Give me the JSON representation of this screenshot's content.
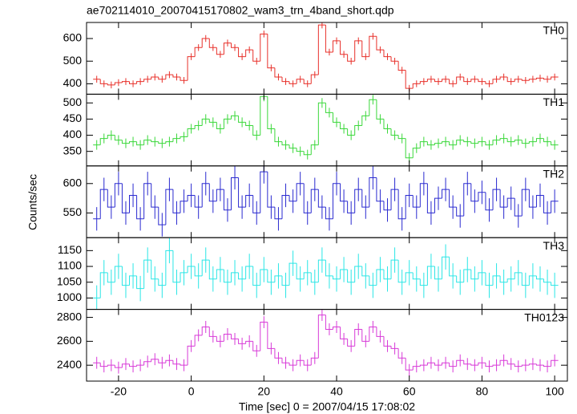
{
  "chart_data": {
    "type": "line",
    "title": "ae702114010_20070415170802_wam3_trn_4band_short.qdp",
    "xlabel": "Time [sec] 0 = 2007/04/15 17:08:02",
    "ylabel": "Counts/sec",
    "x": [
      -26,
      -24,
      -22,
      -20,
      -18,
      -16,
      -14,
      -12,
      -10,
      -8,
      -6,
      -4,
      -2,
      0,
      2,
      4,
      6,
      8,
      10,
      12,
      14,
      16,
      18,
      20,
      22,
      24,
      26,
      28,
      30,
      32,
      34,
      36,
      38,
      40,
      42,
      44,
      46,
      48,
      50,
      52,
      54,
      56,
      58,
      60,
      62,
      64,
      66,
      68,
      70,
      72,
      74,
      76,
      78,
      80,
      82,
      84,
      86,
      88,
      90,
      92,
      94,
      96,
      98,
      100
    ],
    "xlim": [
      -28.8,
      103.5
    ],
    "xticks": [
      -20,
      0,
      20,
      40,
      60,
      80,
      100
    ],
    "series": [
      {
        "name": "TH0",
        "color": "#e8302a",
        "error": 15,
        "ylim": [
          354,
          671
        ],
        "yticks": [
          400,
          500,
          600
        ],
        "values": [
          420,
          400,
          395,
          405,
          410,
          400,
          410,
          420,
          430,
          420,
          440,
          430,
          415,
          520,
          560,
          600,
          560,
          530,
          580,
          560,
          520,
          550,
          500,
          620,
          470,
          430,
          410,
          400,
          420,
          400,
          440,
          660,
          540,
          590,
          530,
          500,
          590,
          520,
          610,
          550,
          520,
          500,
          460,
          380,
          400,
          410,
          420,
          410,
          420,
          400,
          430,
          410,
          420,
          410,
          400,
          420,
          430,
          410,
          420,
          415,
          420,
          425,
          420,
          430
        ]
      },
      {
        "name": "TH1",
        "color": "#3ad83a",
        "error": 15,
        "ylim": [
          305,
          527
        ],
        "yticks": [
          350,
          400,
          450,
          500
        ],
        "values": [
          370,
          390,
          400,
          385,
          375,
          380,
          370,
          385,
          380,
          375,
          380,
          390,
          395,
          420,
          430,
          450,
          440,
          420,
          450,
          460,
          440,
          430,
          400,
          520,
          420,
          380,
          370,
          360,
          350,
          340,
          370,
          500,
          470,
          440,
          420,
          400,
          430,
          460,
          510,
          450,
          420,
          400,
          390,
          330,
          360,
          380,
          370,
          375,
          380,
          370,
          385,
          380,
          375,
          380,
          370,
          385,
          390,
          380,
          385,
          375,
          380,
          390,
          380,
          370
        ]
      },
      {
        "name": "TH2",
        "color": "#2a2ad0",
        "error": 20,
        "ylim": [
          508,
          630
        ],
        "yticks": [
          550,
          600
        ],
        "values": [
          540,
          590,
          560,
          600,
          550,
          580,
          540,
          600,
          560,
          530,
          590,
          550,
          570,
          580,
          560,
          600,
          570,
          590,
          555,
          610,
          560,
          580,
          550,
          620,
          560,
          540,
          580,
          570,
          600,
          550,
          590,
          560,
          540,
          600,
          570,
          550,
          590,
          560,
          610,
          570,
          555,
          590,
          540,
          580,
          560,
          600,
          550,
          575,
          590,
          560,
          545,
          600,
          570,
          585,
          555,
          590,
          560,
          575,
          545,
          590,
          560,
          580,
          550,
          570
        ]
      },
      {
        "name": "TH3",
        "color": "#2ae6e6",
        "error": 40,
        "ylim": [
          964,
          1191
        ],
        "yticks": [
          1000,
          1050,
          1100,
          1150
        ],
        "values": [
          1000,
          1080,
          1050,
          1100,
          1040,
          1070,
          1030,
          1120,
          1060,
          1040,
          1150,
          1050,
          1080,
          1100,
          1070,
          1120,
          1060,
          1090,
          1050,
          1080,
          1060,
          1100,
          1040,
          1090,
          1050,
          1070,
          1040,
          1110,
          1060,
          1080,
          1050,
          1120,
          1070,
          1060,
          1090,
          1050,
          1100,
          1070,
          1040,
          1090,
          1060,
          1120,
          1050,
          1080,
          1060,
          1040,
          1100,
          1060,
          1130,
          1070,
          1050,
          1090,
          1060,
          1080,
          1040,
          1070,
          1050,
          1060,
          1080,
          1040,
          1070,
          1060,
          1050,
          1040
        ]
      },
      {
        "name": "TH0123",
        "color": "#d83ad8",
        "error": 50,
        "ylim": [
          2267,
          2867
        ],
        "yticks": [
          2400,
          2600,
          2800
        ],
        "values": [
          2420,
          2390,
          2400,
          2380,
          2410,
          2390,
          2400,
          2430,
          2450,
          2420,
          2440,
          2410,
          2400,
          2560,
          2650,
          2720,
          2640,
          2600,
          2660,
          2620,
          2580,
          2600,
          2520,
          2760,
          2540,
          2460,
          2420,
          2400,
          2440,
          2400,
          2460,
          2820,
          2700,
          2720,
          2620,
          2560,
          2700,
          2600,
          2720,
          2640,
          2560,
          2540,
          2460,
          2360,
          2390,
          2400,
          2420,
          2400,
          2420,
          2390,
          2440,
          2410,
          2400,
          2420,
          2390,
          2400,
          2440,
          2410,
          2390,
          2400,
          2410,
          2400,
          2390,
          2440
        ]
      }
    ]
  }
}
